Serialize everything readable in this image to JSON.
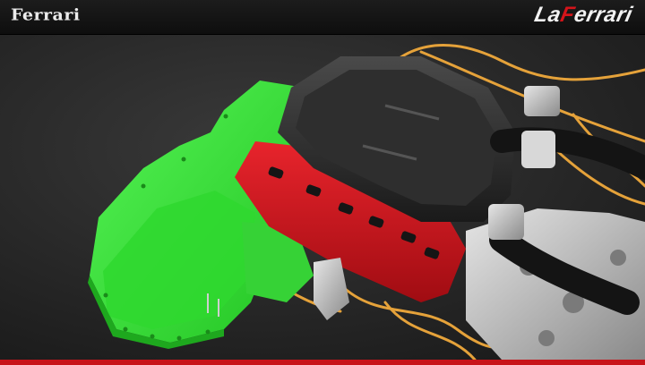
{
  "header": {
    "brand_left": "Ferrari",
    "brand_right_prefix": "La",
    "brand_right_accent": "F",
    "brand_right_suffix": "errari"
  },
  "colors": {
    "background": "#2a2a2a",
    "header": "#111111",
    "accent_red": "#c8141a",
    "gearbox_green": "#3ae23a",
    "cam_cover_red": "#d0141c",
    "intake_plenum": "#2a2a2a",
    "wiring": "#e5a23a"
  },
  "scene": {
    "subject": "engine-cutaway-render"
  }
}
